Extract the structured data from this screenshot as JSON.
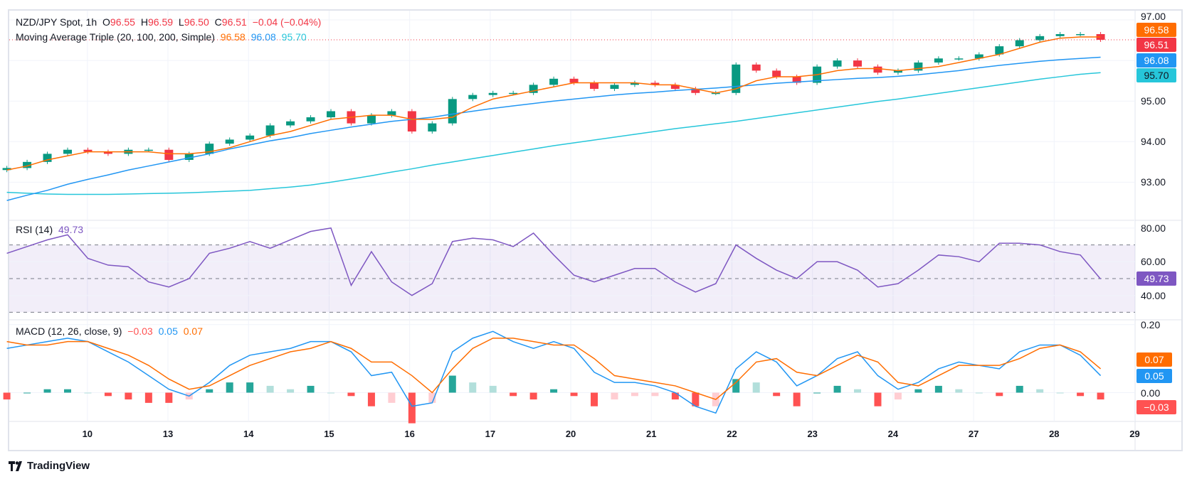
{
  "header": {
    "symbol": "NZD/JPY Spot, 1h",
    "open_label": "O",
    "open": "96.55",
    "high_label": "H",
    "high": "96.59",
    "low_label": "L",
    "low": "96.50",
    "close_label": "C",
    "close": "96.51",
    "change": "−0.04 (−0.04%)"
  },
  "ma_legend": {
    "title": "Moving Average Triple (20, 100, 200, Simple)",
    "ma20": "96.58",
    "ma100": "96.08",
    "ma200": "95.70"
  },
  "rsi_legend": {
    "title": "RSI (14)",
    "value": "49.73"
  },
  "macd_legend": {
    "title": "MACD (12, 26, close, 9)",
    "hist": "−0.03",
    "macd": "0.05",
    "signal": "0.07"
  },
  "badges": {
    "ma20": "96.58",
    "close": "96.51",
    "ma100": "96.08",
    "ma200": "95.70",
    "rsi": "49.73",
    "signal": "0.07",
    "macd": "0.05",
    "hist": "−0.03"
  },
  "brand": "TradingView",
  "colors": {
    "up": "#089981",
    "down": "#F23645",
    "ma20": "#FF6D00",
    "ma100": "#2196F3",
    "ma200": "#26C6DA",
    "rsi": "#7E57C2",
    "macd": "#2196F3",
    "signal": "#FF6D00",
    "hist_pos_strong": "#26A69A",
    "hist_pos_weak": "#B2DFDB",
    "hist_neg_strong": "#FF5252",
    "hist_neg_weak": "#FFCDD2"
  },
  "chart_data": [
    {
      "type": "candlestick",
      "title": "NZD/JPY Spot, 1h",
      "ylim": [
        92.4,
        97.0
      ],
      "yticks": [
        "97.00",
        "95.00",
        "94.00",
        "93.00"
      ],
      "xticks": [
        "10",
        "13",
        "14",
        "15",
        "16",
        "17",
        "20",
        "21",
        "22",
        "23",
        "24",
        "27",
        "28",
        "29"
      ],
      "grid": true,
      "close": [
        93.35,
        93.5,
        93.7,
        93.8,
        93.75,
        93.7,
        93.8,
        93.8,
        93.55,
        93.7,
        93.95,
        94.05,
        94.15,
        94.4,
        94.5,
        94.6,
        94.75,
        94.45,
        94.65,
        94.75,
        94.25,
        94.45,
        95.05,
        95.15,
        95.2,
        95.2,
        95.4,
        95.55,
        95.45,
        95.3,
        95.4,
        95.45,
        95.4,
        95.3,
        95.2,
        95.2,
        95.9,
        95.75,
        95.6,
        95.45,
        95.85,
        96.0,
        95.85,
        95.7,
        95.75,
        95.95,
        96.05,
        96.05,
        96.15,
        96.35,
        96.5,
        96.6,
        96.65,
        96.65,
        96.51
      ],
      "series": [
        {
          "name": "MA 20",
          "values": [
            93.3,
            93.4,
            93.55,
            93.65,
            93.75,
            93.75,
            93.75,
            93.75,
            93.7,
            93.7,
            93.75,
            93.85,
            94.0,
            94.15,
            94.25,
            94.4,
            94.55,
            94.6,
            94.65,
            94.65,
            94.55,
            94.55,
            94.6,
            94.85,
            95.05,
            95.15,
            95.25,
            95.35,
            95.45,
            95.45,
            95.45,
            95.45,
            95.4,
            95.4,
            95.3,
            95.2,
            95.3,
            95.5,
            95.6,
            95.6,
            95.65,
            95.75,
            95.8,
            95.8,
            95.75,
            95.8,
            95.85,
            95.95,
            96.05,
            96.15,
            96.3,
            96.45,
            96.55,
            96.58,
            96.58
          ]
        },
        {
          "name": "MA 100",
          "values": [
            92.55,
            92.68,
            92.8,
            92.95,
            93.07,
            93.18,
            93.3,
            93.4,
            93.5,
            93.6,
            93.7,
            93.82,
            93.92,
            94.02,
            94.1,
            94.2,
            94.28,
            94.36,
            94.43,
            94.5,
            94.55,
            94.6,
            94.68,
            94.75,
            94.82,
            94.88,
            94.94,
            95.0,
            95.05,
            95.1,
            95.15,
            95.19,
            95.22,
            95.26,
            95.29,
            95.32,
            95.36,
            95.4,
            95.44,
            95.47,
            95.5,
            95.53,
            95.56,
            95.58,
            95.61,
            95.65,
            95.7,
            95.75,
            95.82,
            95.88,
            95.93,
            95.98,
            96.02,
            96.05,
            96.08
          ]
        },
        {
          "name": "MA 200",
          "values": [
            92.75,
            92.73,
            92.71,
            92.7,
            92.7,
            92.7,
            92.71,
            92.72,
            92.73,
            92.74,
            92.76,
            92.78,
            92.8,
            92.84,
            92.88,
            92.93,
            93.0,
            93.08,
            93.16,
            93.25,
            93.33,
            93.42,
            93.5,
            93.58,
            93.66,
            93.74,
            93.82,
            93.9,
            93.97,
            94.04,
            94.11,
            94.18,
            94.25,
            94.32,
            94.38,
            94.44,
            94.5,
            94.57,
            94.64,
            94.71,
            94.78,
            94.85,
            94.92,
            94.99,
            95.05,
            95.12,
            95.19,
            95.26,
            95.33,
            95.4,
            95.47,
            95.54,
            95.6,
            95.66,
            95.7
          ]
        }
      ]
    },
    {
      "type": "line",
      "title": "RSI (14)",
      "ylim": [
        25,
        85
      ],
      "yticks": [
        "80.00",
        "60.00",
        "40.00"
      ],
      "bands": [
        30,
        50,
        70
      ],
      "series": [
        {
          "name": "RSI",
          "values": [
            65,
            69,
            73,
            76,
            62,
            58,
            57,
            48,
            45,
            50,
            65,
            68,
            72,
            68,
            73,
            78,
            80,
            46,
            66,
            48,
            40,
            47,
            72,
            74,
            73,
            69,
            77,
            64,
            52,
            48,
            52,
            56,
            56,
            48,
            42,
            47,
            70,
            62,
            55,
            50,
            60,
            60,
            55,
            45,
            47,
            55,
            64,
            63,
            60,
            71,
            71,
            70,
            66,
            64,
            49.73
          ]
        }
      ]
    },
    {
      "type": "line",
      "title": "MACD (12, 26, close, 9)",
      "ylim": [
        -0.085,
        0.2
      ],
      "yticks": [
        "0.20",
        "0.00"
      ],
      "series": [
        {
          "name": "MACD",
          "values": [
            0.13,
            0.14,
            0.15,
            0.16,
            0.15,
            0.12,
            0.09,
            0.05,
            0.01,
            -0.01,
            0.03,
            0.08,
            0.11,
            0.12,
            0.13,
            0.15,
            0.15,
            0.12,
            0.05,
            0.06,
            -0.04,
            -0.03,
            0.12,
            0.16,
            0.18,
            0.15,
            0.13,
            0.15,
            0.13,
            0.06,
            0.03,
            0.03,
            0.02,
            0.0,
            -0.04,
            -0.06,
            0.07,
            0.12,
            0.09,
            0.02,
            0.05,
            0.1,
            0.12,
            0.05,
            0.01,
            0.03,
            0.07,
            0.09,
            0.08,
            0.07,
            0.12,
            0.14,
            0.14,
            0.11,
            0.05
          ]
        },
        {
          "name": "Signal",
          "values": [
            0.15,
            0.14,
            0.14,
            0.15,
            0.15,
            0.13,
            0.11,
            0.08,
            0.04,
            0.01,
            0.02,
            0.05,
            0.08,
            0.1,
            0.12,
            0.13,
            0.15,
            0.13,
            0.09,
            0.09,
            0.05,
            0.0,
            0.07,
            0.13,
            0.16,
            0.16,
            0.15,
            0.14,
            0.14,
            0.1,
            0.05,
            0.04,
            0.03,
            0.02,
            0.0,
            -0.02,
            0.03,
            0.09,
            0.1,
            0.06,
            0.05,
            0.08,
            0.11,
            0.09,
            0.03,
            0.02,
            0.05,
            0.08,
            0.08,
            0.08,
            0.1,
            0.13,
            0.14,
            0.12,
            0.07
          ]
        }
      ]
    }
  ]
}
